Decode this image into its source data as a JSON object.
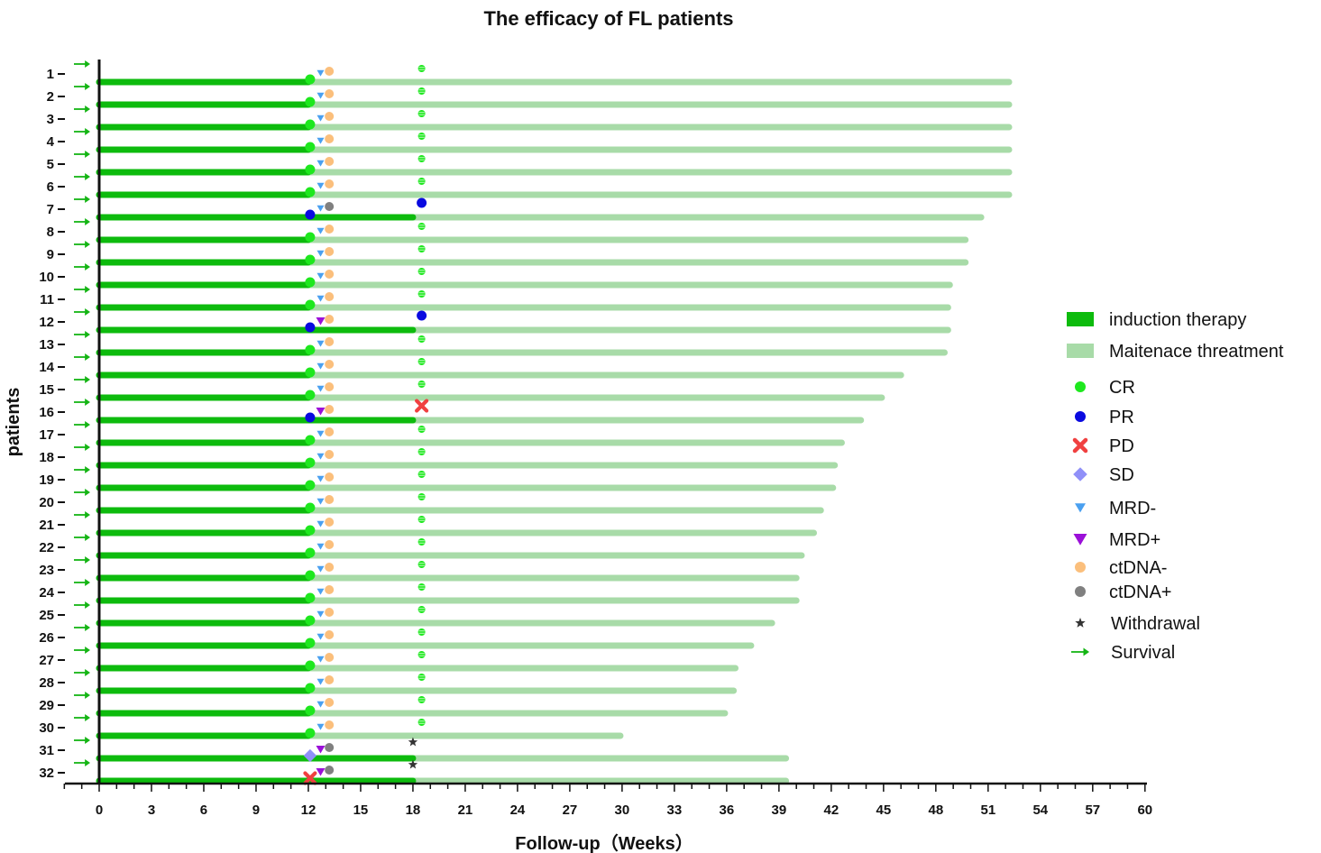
{
  "chart_data": {
    "type": "swimmer",
    "title": "The efficacy of FL patients",
    "xlabel": "Follow-up（Weeks）",
    "ylabel": "patients",
    "xlim": [
      0,
      60
    ],
    "xticks": [
      0,
      3,
      6,
      9,
      12,
      15,
      18,
      21,
      24,
      27,
      30,
      33,
      36,
      39,
      42,
      45,
      48,
      51,
      54,
      57,
      60
    ],
    "patients": [
      "1",
      "2",
      "3",
      "4",
      "5",
      "6",
      "7",
      "8",
      "9",
      "10",
      "11",
      "12",
      "13",
      "14",
      "15",
      "16",
      "17",
      "18",
      "19",
      "20",
      "21",
      "22",
      "23",
      "24",
      "25",
      "26",
      "27",
      "28",
      "29",
      "30",
      "31",
      "32"
    ],
    "induction_end": [
      12,
      12,
      12,
      12,
      12,
      12,
      18,
      12,
      12,
      12,
      12,
      18,
      12,
      12,
      12,
      18,
      12,
      12,
      12,
      12,
      12,
      12,
      12,
      12,
      12,
      12,
      12,
      12,
      12,
      12,
      18,
      18
    ],
    "total_weeks": [
      52.2,
      52.2,
      52.2,
      52.2,
      52.2,
      52.2,
      50.6,
      49.7,
      49.7,
      48.8,
      48.7,
      48.7,
      48.5,
      46.0,
      44.9,
      43.7,
      42.6,
      42.2,
      42.1,
      41.4,
      41.0,
      40.3,
      40.0,
      40.0,
      38.6,
      37.4,
      36.5,
      36.4,
      35.9,
      29.9,
      39.4,
      39.4
    ],
    "response_week12": [
      "CR",
      "CR",
      "CR",
      "CR",
      "CR",
      "CR",
      "PR",
      "CR",
      "CR",
      "CR",
      "CR",
      "PR",
      "CR",
      "CR",
      "CR",
      "PR",
      "CR",
      "CR",
      "CR",
      "CR",
      "CR",
      "CR",
      "CR",
      "CR",
      "CR",
      "CR",
      "CR",
      "CR",
      "CR",
      "CR",
      "SD",
      "PD"
    ],
    "mrd_week12": [
      "MRD-",
      "MRD-",
      "MRD-",
      "MRD-",
      "MRD-",
      "MRD-",
      "MRD-",
      "MRD-",
      "MRD-",
      "MRD-",
      "MRD-",
      "MRD+",
      "MRD-",
      "MRD-",
      "MRD-",
      "MRD+",
      "MRD-",
      "MRD-",
      "MRD-",
      "MRD-",
      "MRD-",
      "MRD-",
      "MRD-",
      "MRD-",
      "MRD-",
      "MRD-",
      "MRD-",
      "MRD-",
      "MRD-",
      "MRD-",
      "MRD+",
      "MRD+"
    ],
    "ctdna_week13": [
      "ctDNA-",
      "ctDNA-",
      "ctDNA-",
      "ctDNA-",
      "ctDNA-",
      "ctDNA-",
      "ctDNA+",
      "ctDNA-",
      "ctDNA-",
      "ctDNA-",
      "ctDNA-",
      "ctDNA-",
      "ctDNA-",
      "ctDNA-",
      "ctDNA-",
      "ctDNA-",
      "ctDNA-",
      "ctDNA-",
      "ctDNA-",
      "ctDNA-",
      "ctDNA-",
      "ctDNA-",
      "ctDNA-",
      "ctDNA-",
      "ctDNA-",
      "ctDNA-",
      "ctDNA-",
      "ctDNA-",
      "ctDNA-",
      "ctDNA-",
      "ctDNA+",
      "ctDNA+"
    ],
    "response_week18": [
      "CR",
      "CR",
      "CR",
      "CR",
      "CR",
      "CR",
      "PR",
      "CR",
      "CR",
      "CR",
      "CR",
      "PR",
      "CR",
      "CR",
      "CR",
      "PD",
      "CR",
      "CR",
      "CR",
      "CR",
      "CR",
      "CR",
      "CR",
      "CR",
      "CR",
      "CR",
      "CR",
      "CR",
      "CR",
      "CR",
      "Withdrawal",
      "Withdrawal"
    ],
    "survival": [
      "Survival",
      "Survival",
      "Survival",
      "Survival",
      "Survival",
      "Survival",
      "Survival",
      "Survival",
      "Survival",
      "Survival",
      "Survival",
      "Survival",
      "Survival",
      "Survival",
      "Survival",
      "Survival",
      "Survival",
      "Survival",
      "Survival",
      "Survival",
      "Survival",
      "Survival",
      "Survival",
      "Survival",
      "Survival",
      "Survival",
      "Survival",
      "Survival",
      "Survival",
      "Survival",
      "Survival",
      "Survival"
    ],
    "legend": [
      {
        "key": "induction",
        "label": "induction therapy",
        "color": "#0dbb0d"
      },
      {
        "key": "maintenance",
        "label": "Maitenace threatment",
        "color": "#a8dba8"
      },
      {
        "key": "CR",
        "label": "CR",
        "color": "#1ee81e"
      },
      {
        "key": "PR",
        "label": "PR",
        "color": "#0a0ae0"
      },
      {
        "key": "PD",
        "label": "PD",
        "color": "#f04040"
      },
      {
        "key": "SD",
        "label": "SD",
        "color": "#9090f8"
      },
      {
        "key": "MRD-",
        "label": "MRD-",
        "color": "#4aa0f0"
      },
      {
        "key": "MRD+",
        "label": "MRD+",
        "color": "#9b10d8"
      },
      {
        "key": "ctDNA-",
        "label": "ctDNA-",
        "color": "#fbbf7c"
      },
      {
        "key": "ctDNA+",
        "label": "ctDNA+",
        "color": "#808080"
      },
      {
        "key": "Withdrawal",
        "label": "Withdrawal",
        "color": "#333333"
      },
      {
        "key": "Survival",
        "label": "Survival",
        "color": "#14b514"
      }
    ]
  }
}
